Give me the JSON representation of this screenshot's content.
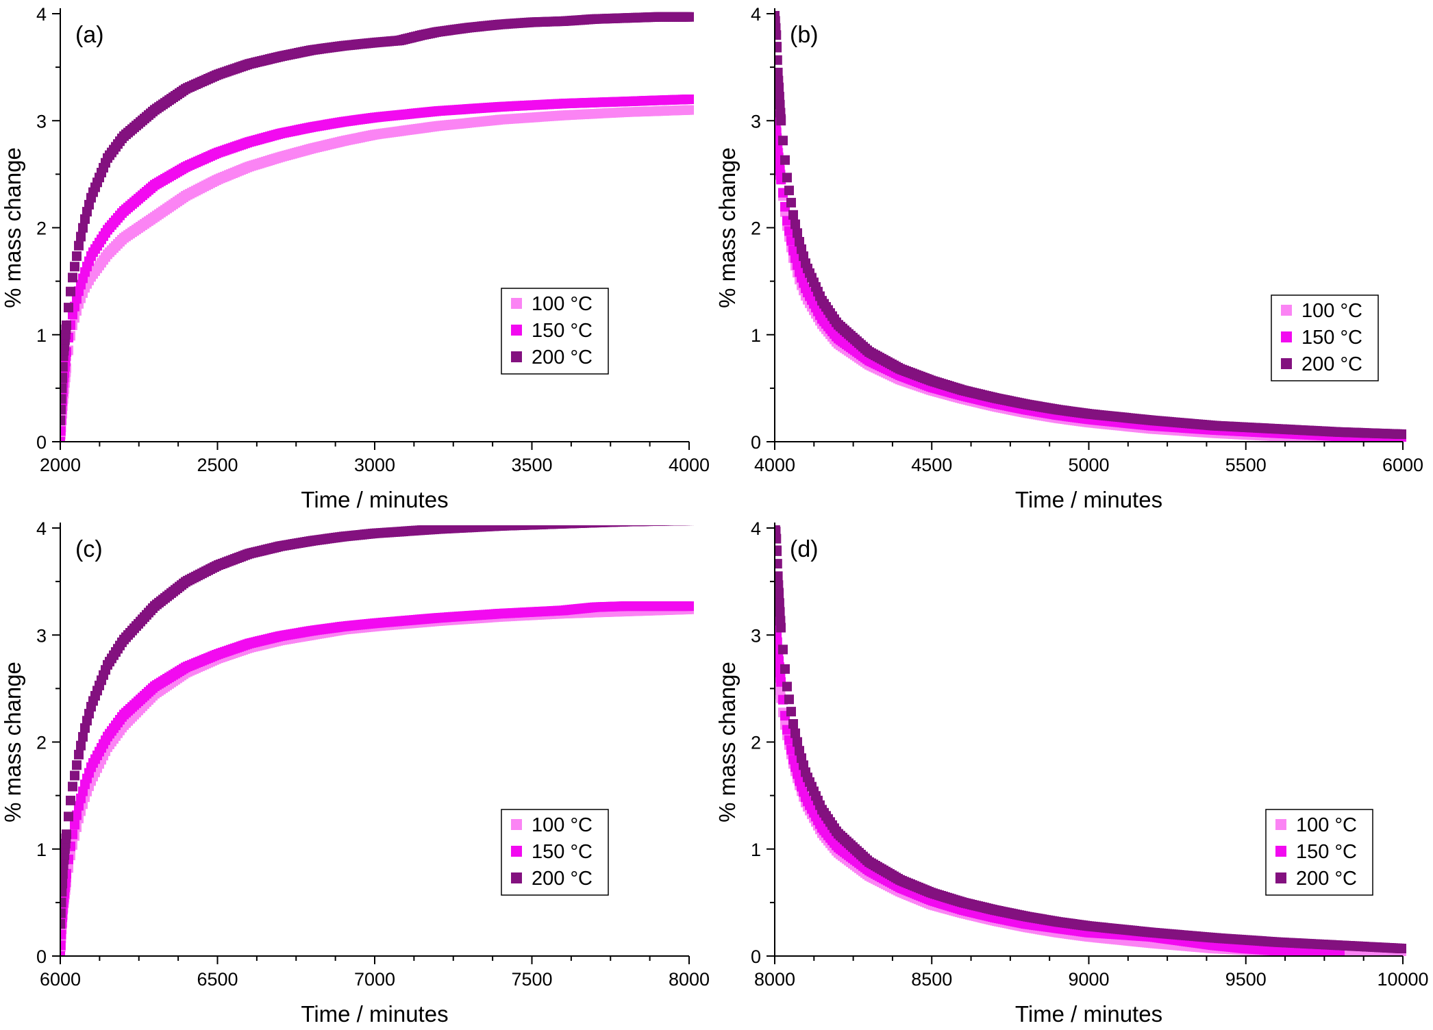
{
  "colors": {
    "100 °C": "#fb84f4",
    "150 °C": "#f20af0",
    "200 °C": "#83117f",
    "axis": "#000000"
  },
  "chart_data": [
    {
      "panel": "(a)",
      "type": "scatter",
      "xlabel": "Time / minutes",
      "ylabel": "% mass change",
      "xlim": [
        2000,
        4000
      ],
      "ylim": [
        0,
        4
      ],
      "xticks": [
        2000,
        2500,
        3000,
        3500,
        4000
      ],
      "yticks": [
        0,
        1,
        2,
        3,
        4
      ],
      "grid": false,
      "legend_position": "center-right",
      "series": [
        {
          "name": "100 °C",
          "x": [
            2000,
            2005,
            2010,
            2020,
            2030,
            2040,
            2060,
            2080,
            2100,
            2150,
            2200,
            2300,
            2400,
            2500,
            2600,
            2700,
            2800,
            2900,
            3000,
            3200,
            3400,
            3600,
            3800,
            4000
          ],
          "y": [
            0,
            0.2,
            0.4,
            0.7,
            0.95,
            1.1,
            1.3,
            1.45,
            1.55,
            1.75,
            1.9,
            2.1,
            2.3,
            2.45,
            2.57,
            2.66,
            2.74,
            2.81,
            2.87,
            2.95,
            3.01,
            3.05,
            3.08,
            3.1
          ]
        },
        {
          "name": "150 °C",
          "x": [
            2000,
            2005,
            2010,
            2020,
            2030,
            2040,
            2060,
            2080,
            2100,
            2150,
            2200,
            2300,
            2400,
            2500,
            2600,
            2700,
            2800,
            2900,
            3000,
            3200,
            3400,
            3600,
            3800,
            4000
          ],
          "y": [
            0,
            0.3,
            0.55,
            0.85,
            1.05,
            1.2,
            1.42,
            1.6,
            1.75,
            1.98,
            2.15,
            2.4,
            2.57,
            2.7,
            2.8,
            2.88,
            2.94,
            2.99,
            3.03,
            3.09,
            3.13,
            3.16,
            3.18,
            3.2
          ]
        },
        {
          "name": "200 °C",
          "x": [
            2000,
            2005,
            2010,
            2020,
            2030,
            2040,
            2060,
            2080,
            2100,
            2150,
            2200,
            2300,
            2400,
            2500,
            2600,
            2700,
            2800,
            2900,
            3000,
            3080,
            3150,
            3200,
            3300,
            3400,
            3500,
            3600,
            3700,
            3800,
            3900,
            4000
          ],
          "y": [
            0.2,
            0.5,
            0.8,
            1.1,
            1.35,
            1.55,
            1.85,
            2.1,
            2.3,
            2.65,
            2.85,
            3.1,
            3.3,
            3.43,
            3.53,
            3.6,
            3.66,
            3.7,
            3.73,
            3.75,
            3.8,
            3.83,
            3.87,
            3.9,
            3.92,
            3.93,
            3.95,
            3.96,
            3.97,
            3.97
          ]
        }
      ]
    },
    {
      "panel": "(b)",
      "type": "scatter",
      "xlabel": "Time / minutes",
      "ylabel": "% mass change",
      "xlim": [
        4000,
        6000
      ],
      "ylim": [
        0,
        4
      ],
      "xticks": [
        4000,
        4500,
        5000,
        5500,
        6000
      ],
      "yticks": [
        0,
        1,
        2,
        3,
        4
      ],
      "grid": false,
      "legend_position": "center-right",
      "series": [
        {
          "name": "100 °C",
          "x": [
            4000,
            4005,
            4010,
            4020,
            4030,
            4040,
            4060,
            4080,
            4100,
            4150,
            4200,
            4300,
            4400,
            4500,
            4600,
            4700,
            4800,
            4900,
            5000,
            5200,
            5400,
            5600,
            5800,
            6000
          ],
          "y": [
            3.15,
            2.95,
            2.75,
            2.45,
            2.2,
            2.0,
            1.7,
            1.5,
            1.35,
            1.1,
            0.92,
            0.72,
            0.58,
            0.48,
            0.4,
            0.33,
            0.27,
            0.22,
            0.18,
            0.12,
            0.08,
            0.05,
            0.03,
            0.02
          ]
        },
        {
          "name": "150 °C",
          "x": [
            4000,
            4005,
            4010,
            4020,
            4030,
            4040,
            4060,
            4080,
            4100,
            4150,
            4200,
            4300,
            4400,
            4500,
            4600,
            4700,
            4800,
            4900,
            5000,
            5200,
            5400,
            5600,
            5800,
            6000
          ],
          "y": [
            3.05,
            2.9,
            2.7,
            2.45,
            2.25,
            2.05,
            1.77,
            1.57,
            1.42,
            1.15,
            0.97,
            0.76,
            0.62,
            0.51,
            0.43,
            0.36,
            0.3,
            0.25,
            0.21,
            0.15,
            0.11,
            0.08,
            0.05,
            0.04
          ]
        },
        {
          "name": "200 °C",
          "x": [
            4000,
            4005,
            4010,
            4020,
            4030,
            4040,
            4060,
            4080,
            4100,
            4150,
            4200,
            4300,
            4400,
            4500,
            4600,
            4700,
            4800,
            4900,
            5000,
            5200,
            5400,
            5600,
            5800,
            6000
          ],
          "y": [
            4.0,
            3.8,
            3.45,
            3.0,
            2.7,
            2.45,
            2.1,
            1.85,
            1.65,
            1.32,
            1.1,
            0.84,
            0.68,
            0.57,
            0.48,
            0.41,
            0.35,
            0.3,
            0.26,
            0.2,
            0.15,
            0.12,
            0.09,
            0.07
          ]
        }
      ]
    },
    {
      "panel": "(c)",
      "type": "scatter",
      "xlabel": "Time / minutes",
      "ylabel": "% mass change",
      "xlim": [
        6000,
        8000
      ],
      "ylim": [
        0,
        4
      ],
      "xticks": [
        6000,
        6500,
        7000,
        7500,
        8000
      ],
      "yticks": [
        0,
        1,
        2,
        3,
        4
      ],
      "grid": false,
      "legend_position": "center-right",
      "series": [
        {
          "name": "100 °C",
          "x": [
            6000,
            6005,
            6010,
            6020,
            6030,
            6040,
            6060,
            6080,
            6100,
            6150,
            6200,
            6300,
            6400,
            6500,
            6600,
            6700,
            6800,
            6900,
            7000,
            7200,
            7400,
            7600,
            7800,
            8000
          ],
          "y": [
            0,
            0.25,
            0.45,
            0.7,
            0.9,
            1.05,
            1.3,
            1.5,
            1.65,
            1.95,
            2.15,
            2.45,
            2.65,
            2.78,
            2.88,
            2.95,
            3.0,
            3.05,
            3.08,
            3.13,
            3.17,
            3.2,
            3.22,
            3.24
          ]
        },
        {
          "name": "150 °C",
          "x": [
            6000,
            6005,
            6010,
            6020,
            6030,
            6040,
            6060,
            6080,
            6100,
            6150,
            6200,
            6300,
            6400,
            6500,
            6600,
            6700,
            6800,
            6900,
            7000,
            7200,
            7400,
            7600,
            7700,
            7800,
            8000
          ],
          "y": [
            0,
            0.3,
            0.5,
            0.78,
            0.98,
            1.15,
            1.42,
            1.62,
            1.78,
            2.05,
            2.25,
            2.52,
            2.7,
            2.82,
            2.92,
            2.99,
            3.04,
            3.08,
            3.11,
            3.16,
            3.2,
            3.23,
            3.26,
            3.27,
            3.27
          ]
        },
        {
          "name": "200 °C",
          "x": [
            6000,
            6005,
            6010,
            6020,
            6030,
            6040,
            6060,
            6080,
            6100,
            6150,
            6200,
            6300,
            6400,
            6500,
            6600,
            6700,
            6800,
            6900,
            7000,
            7200,
            7400,
            7600,
            7800,
            8000
          ],
          "y": [
            0.3,
            0.6,
            0.85,
            1.15,
            1.4,
            1.6,
            1.9,
            2.15,
            2.35,
            2.72,
            2.95,
            3.27,
            3.5,
            3.65,
            3.76,
            3.83,
            3.88,
            3.92,
            3.95,
            3.99,
            4.02,
            4.04,
            4.06,
            4.07
          ]
        }
      ]
    },
    {
      "panel": "(d)",
      "type": "scatter",
      "xlabel": "Time / minutes",
      "ylabel": "% mass change",
      "xlim": [
        8000,
        10000
      ],
      "ylim": [
        0,
        4
      ],
      "xticks": [
        8000,
        8500,
        9000,
        9500,
        10000
      ],
      "yticks": [
        0,
        1,
        2,
        3,
        4
      ],
      "grid": false,
      "legend_position": "center-right",
      "series": [
        {
          "name": "100 °C",
          "x": [
            8000,
            8005,
            8010,
            8020,
            8030,
            8040,
            8060,
            8080,
            8100,
            8150,
            8200,
            8300,
            8400,
            8500,
            8600,
            8700,
            8800,
            8900,
            9000,
            9200,
            9400,
            9600,
            9800,
            10000
          ],
          "y": [
            3.05,
            2.85,
            2.65,
            2.4,
            2.2,
            2.05,
            1.78,
            1.58,
            1.42,
            1.15,
            0.97,
            0.75,
            0.6,
            0.48,
            0.4,
            0.33,
            0.27,
            0.22,
            0.18,
            0.12,
            0.07,
            0.04,
            0.02,
            0.01
          ]
        },
        {
          "name": "150 °C",
          "x": [
            8000,
            8005,
            8010,
            8020,
            8030,
            8040,
            8060,
            8080,
            8100,
            8150,
            8200,
            8300,
            8400,
            8500,
            8600,
            8700,
            8800,
            8900,
            9000,
            9100,
            9200,
            9300,
            9400,
            9500,
            9600,
            9700,
            9800
          ],
          "y": [
            3.3,
            3.1,
            2.85,
            2.55,
            2.3,
            2.1,
            1.82,
            1.62,
            1.47,
            1.2,
            1.02,
            0.8,
            0.64,
            0.52,
            0.43,
            0.36,
            0.3,
            0.26,
            0.22,
            0.2,
            0.18,
            0.14,
            0.1,
            0.07,
            0.05,
            0.03,
            0.02
          ]
        },
        {
          "name": "200 °C",
          "x": [
            8000,
            8005,
            8010,
            8020,
            8030,
            8040,
            8060,
            8080,
            8100,
            8150,
            8200,
            8300,
            8400,
            8500,
            8600,
            8700,
            8800,
            8900,
            9000,
            9200,
            9400,
            9600,
            9800,
            10000
          ],
          "y": [
            4.1,
            3.9,
            3.55,
            3.05,
            2.75,
            2.5,
            2.15,
            1.9,
            1.7,
            1.37,
            1.15,
            0.88,
            0.71,
            0.59,
            0.5,
            0.43,
            0.37,
            0.32,
            0.28,
            0.22,
            0.17,
            0.13,
            0.1,
            0.07
          ]
        }
      ]
    }
  ]
}
